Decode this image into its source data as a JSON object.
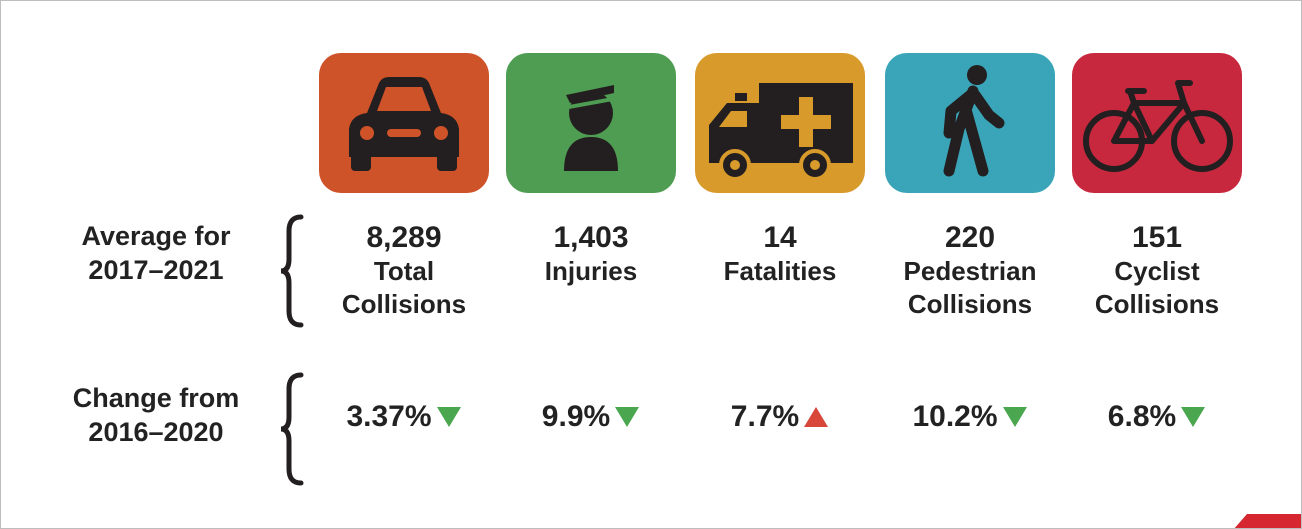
{
  "rows": [
    "Average for 2017–2021",
    "Change from 2016–2020"
  ],
  "columns": [
    {
      "value": "8,289",
      "label": "Total Collisions",
      "change": "3.37%",
      "direction": "down"
    },
    {
      "value": "1,403",
      "label": "Injuries",
      "change": "9.9%",
      "direction": "down"
    },
    {
      "value": "14",
      "label": "Fatalities",
      "change": "7.7%",
      "direction": "up"
    },
    {
      "value": "220",
      "label": "Pedestrian Collisions",
      "change": "10.2%",
      "direction": "down"
    },
    {
      "value": "151",
      "label": "Cyclist Collisions",
      "change": "6.8%",
      "direction": "down"
    }
  ]
}
